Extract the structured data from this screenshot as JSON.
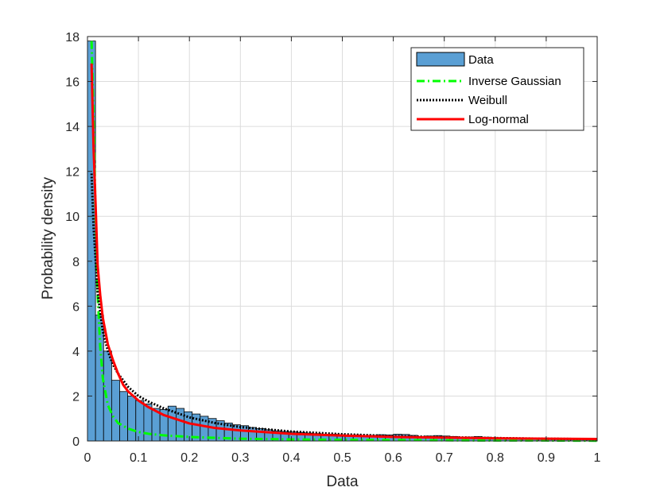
{
  "chart_data": {
    "type": "bar",
    "title": "",
    "xlabel": "Data",
    "ylabel": "Probability density",
    "xlim": [
      0,
      1
    ],
    "ylim": [
      0,
      18
    ],
    "grid": true,
    "legend_position": "top-right",
    "xticks": [
      0,
      0.1,
      0.2,
      0.3,
      0.4,
      0.5,
      0.6,
      0.7,
      0.8,
      0.9,
      1
    ],
    "xtick_labels": [
      "0",
      "0.1",
      "0.2",
      "0.3",
      "0.4",
      "0.5",
      "0.6",
      "0.7",
      "0.8",
      "0.9",
      "1"
    ],
    "yticks": [
      0,
      2,
      4,
      6,
      8,
      10,
      12,
      14,
      16,
      18
    ],
    "ytick_labels": [
      "0",
      "2",
      "4",
      "6",
      "8",
      "10",
      "12",
      "14",
      "16",
      "18"
    ],
    "histogram": {
      "name": "Data",
      "color": "#5a9fd4",
      "bin_width": 0.0158,
      "bin_start": 0,
      "values": [
        17.8,
        5.6,
        4.0,
        2.7,
        2.2,
        2.0,
        1.8,
        1.65,
        1.45,
        1.4,
        1.55,
        1.45,
        1.3,
        1.2,
        1.1,
        1.0,
        0.9,
        0.8,
        0.72,
        0.68,
        0.6,
        0.55,
        0.5,
        0.45,
        0.42,
        0.4,
        0.38,
        0.35,
        0.33,
        0.3,
        0.3,
        0.28,
        0.26,
        0.27,
        0.25,
        0.25,
        0.28,
        0.27,
        0.3,
        0.29,
        0.25,
        0.2,
        0.22,
        0.24,
        0.22,
        0.2,
        0.15,
        0.18,
        0.2,
        0.17,
        0.14,
        0.13,
        0.14,
        0.12,
        0.1,
        0.1,
        0.09,
        0.09,
        0.08,
        0.08,
        0.07,
        0.07,
        0.06
      ]
    },
    "series": [
      {
        "name": "Inverse Gaussian",
        "color": "#00ff00",
        "style": "dashdot",
        "x": [
          0.008,
          0.012,
          0.016,
          0.02,
          0.025,
          0.03,
          0.04,
          0.05,
          0.06,
          0.08,
          0.1,
          0.12,
          0.15,
          0.2,
          0.3,
          0.4,
          0.5,
          0.6,
          0.7,
          0.8,
          0.9,
          1.0
        ],
        "y": [
          17.8,
          14.5,
          10.0,
          6.5,
          4.2,
          2.8,
          1.6,
          1.1,
          0.8,
          0.55,
          0.4,
          0.32,
          0.25,
          0.18,
          0.1,
          0.07,
          0.05,
          0.04,
          0.03,
          0.02,
          0.02,
          0.01
        ]
      },
      {
        "name": "Weibull",
        "color": "#000000",
        "style": "dotted",
        "x": [
          0.008,
          0.012,
          0.02,
          0.03,
          0.04,
          0.05,
          0.06,
          0.08,
          0.1,
          0.12,
          0.15,
          0.2,
          0.25,
          0.3,
          0.4,
          0.5,
          0.6,
          0.7,
          0.8,
          0.9,
          1.0
        ],
        "y": [
          11.9,
          9.5,
          6.6,
          4.9,
          4.0,
          3.4,
          3.0,
          2.4,
          2.0,
          1.75,
          1.45,
          1.05,
          0.8,
          0.62,
          0.42,
          0.3,
          0.22,
          0.17,
          0.13,
          0.1,
          0.08
        ]
      },
      {
        "name": "Log-normal",
        "color": "#ff0000",
        "style": "solid",
        "x": [
          0.008,
          0.012,
          0.016,
          0.02,
          0.025,
          0.03,
          0.035,
          0.04,
          0.05,
          0.06,
          0.07,
          0.08,
          0.1,
          0.12,
          0.15,
          0.2,
          0.25,
          0.3,
          0.4,
          0.5,
          0.6,
          0.7,
          0.8,
          0.9,
          1.0
        ],
        "y": [
          16.8,
          13.0,
          10.5,
          7.8,
          6.5,
          5.5,
          4.9,
          4.3,
          3.6,
          3.0,
          2.5,
          2.2,
          1.8,
          1.5,
          1.15,
          0.78,
          0.58,
          0.47,
          0.32,
          0.24,
          0.18,
          0.15,
          0.12,
          0.1,
          0.09
        ]
      }
    ]
  }
}
